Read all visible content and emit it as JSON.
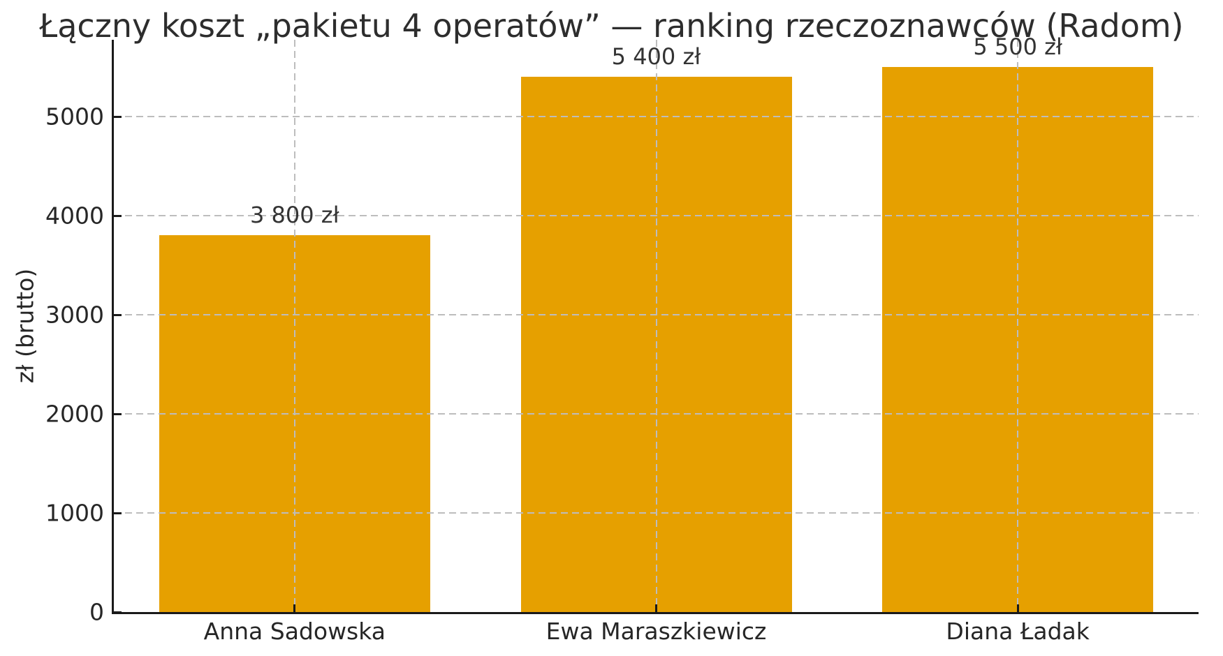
{
  "chart_data": {
    "type": "bar",
    "title": "Łączny koszt „pakietu 4 operatów” — ranking rzeczoznawców (Radom)",
    "ylabel": "zł (brutto)",
    "xlabel": "",
    "categories": [
      "Anna Sadowska",
      "Ewa Maraszkiewicz",
      "Diana Ładak"
    ],
    "values": [
      3800,
      5400,
      5500
    ],
    "bar_value_labels": [
      "3 800 zł",
      "5 400 zł",
      "5 500 zł"
    ],
    "yticks": [
      0,
      1000,
      2000,
      3000,
      4000,
      5000
    ],
    "ytick_labels": [
      "0",
      "1000",
      "2000",
      "3000",
      "4000",
      "5000"
    ],
    "ylim": [
      0,
      5775
    ],
    "grid": "dashed, both axes, drawn above bars",
    "legend": "none",
    "colors": {
      "bar": "#E6A000",
      "grid": "#bdbdbd",
      "spine": "#1a1a1a",
      "text": "#262626",
      "title_text": "#2d2d2d",
      "background": "#ffffff"
    }
  }
}
